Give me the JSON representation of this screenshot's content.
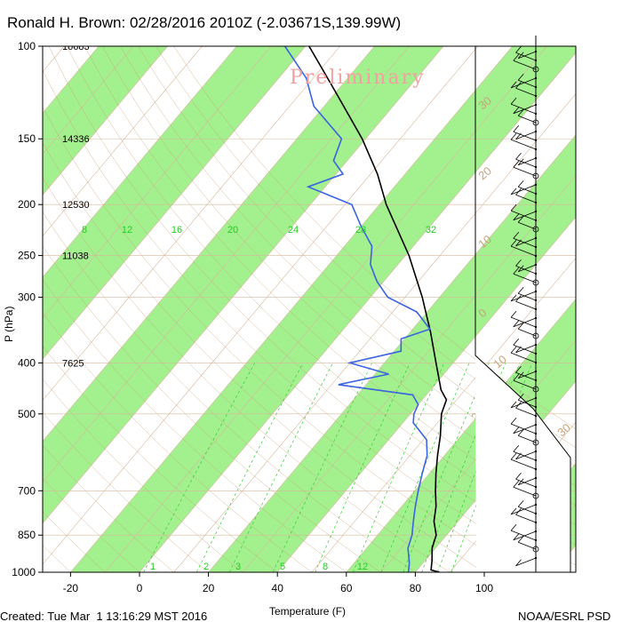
{
  "title": "Ronald H. Brown: 02/28/2016 2010Z (-2.03671S,139.99W)",
  "watermark": "Preliminary",
  "footer_left": "Created: Tue Mar  1 13:16:29 MST 2016",
  "footer_right": "NOAA/ESRL PSD",
  "colors": {
    "temperature": "#000000",
    "dewpoint": "#3a64e0",
    "stripe": "#a3f08f",
    "isotherm": "#d8b89a",
    "mixing": "#33cc33",
    "dry_adiabat": "#c49a6c"
  },
  "chart_data": {
    "type": "line",
    "title": "Ronald H. Brown: 02/28/2016 2010Z (-2.03671S,139.99W)",
    "xlabel": "Temperature (F)",
    "ylabel": "P (hPa)",
    "x_ticks": [
      -20,
      0,
      20,
      40,
      60,
      80,
      100
    ],
    "y_ticks": [
      100,
      150,
      200,
      250,
      300,
      400,
      500,
      700,
      850,
      1000
    ],
    "y_scale": "log",
    "ylim": [
      1000,
      100
    ],
    "height_labels": [
      {
        "p": 100,
        "text": "16683"
      },
      {
        "p": 150,
        "text": "14336"
      },
      {
        "p": 200,
        "text": "12530"
      },
      {
        "p": 250,
        "text": "11038"
      },
      {
        "p": 400,
        "text": "7625"
      }
    ],
    "mixing_ratio_labels": [
      "8",
      "12",
      "16",
      "20",
      "24",
      "28",
      "32"
    ],
    "mixing_ratio_bottom_labels": [
      "1",
      "2",
      "3",
      "5",
      "8",
      "12"
    ],
    "isotherm_labels": [
      "30",
      "20",
      "10",
      "0",
      "10",
      "20",
      "30"
    ],
    "series": [
      {
        "name": "Temperature",
        "points": [
          {
            "p": 1000,
            "t": 87
          },
          {
            "p": 990,
            "t": 84
          },
          {
            "p": 950,
            "t": 82
          },
          {
            "p": 900,
            "t": 79
          },
          {
            "p": 850,
            "t": 77
          },
          {
            "p": 800,
            "t": 73
          },
          {
            "p": 750,
            "t": 70
          },
          {
            "p": 700,
            "t": 66
          },
          {
            "p": 650,
            "t": 62
          },
          {
            "p": 600,
            "t": 58
          },
          {
            "p": 550,
            "t": 54
          },
          {
            "p": 500,
            "t": 49
          },
          {
            "p": 470,
            "t": 47
          },
          {
            "p": 450,
            "t": 43
          },
          {
            "p": 400,
            "t": 35
          },
          {
            "p": 350,
            "t": 26
          },
          {
            "p": 300,
            "t": 15
          },
          {
            "p": 250,
            "t": 1
          },
          {
            "p": 200,
            "t": -18
          },
          {
            "p": 175,
            "t": -28
          },
          {
            "p": 150,
            "t": -41
          },
          {
            "p": 125,
            "t": -58
          },
          {
            "p": 110,
            "t": -70
          },
          {
            "p": 100,
            "t": -79
          }
        ]
      },
      {
        "name": "Dewpoint",
        "points": [
          {
            "p": 1000,
            "t": 78
          },
          {
            "p": 960,
            "t": 76
          },
          {
            "p": 900,
            "t": 72
          },
          {
            "p": 850,
            "t": 70
          },
          {
            "p": 800,
            "t": 67
          },
          {
            "p": 750,
            "t": 64
          },
          {
            "p": 700,
            "t": 61
          },
          {
            "p": 650,
            "t": 58
          },
          {
            "p": 600,
            "t": 55
          },
          {
            "p": 560,
            "t": 51
          },
          {
            "p": 520,
            "t": 43
          },
          {
            "p": 500,
            "t": 41
          },
          {
            "p": 480,
            "t": 40
          },
          {
            "p": 460,
            "t": 36
          },
          {
            "p": 440,
            "t": 12
          },
          {
            "p": 420,
            "t": 24
          },
          {
            "p": 400,
            "t": 10
          },
          {
            "p": 380,
            "t": 22
          },
          {
            "p": 360,
            "t": 19
          },
          {
            "p": 345,
            "t": 25
          },
          {
            "p": 320,
            "t": 17
          },
          {
            "p": 300,
            "t": 5
          },
          {
            "p": 280,
            "t": -2
          },
          {
            "p": 260,
            "t": -8
          },
          {
            "p": 240,
            "t": -12
          },
          {
            "p": 220,
            "t": -20
          },
          {
            "p": 200,
            "t": -28
          },
          {
            "p": 185,
            "t": -45
          },
          {
            "p": 175,
            "t": -38
          },
          {
            "p": 165,
            "t": -44
          },
          {
            "p": 150,
            "t": -47
          },
          {
            "p": 130,
            "t": -63
          },
          {
            "p": 115,
            "t": -72
          },
          {
            "p": 100,
            "t": -86
          }
        ]
      }
    ]
  }
}
